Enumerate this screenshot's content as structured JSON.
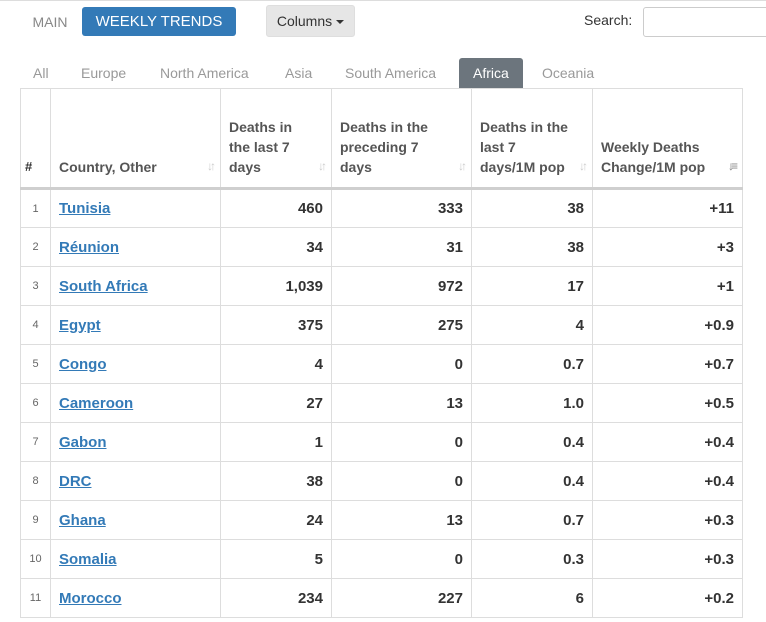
{
  "topbar": {
    "main_tab": "MAIN",
    "weekly_tab": "WEEKLY TRENDS",
    "columns_label": "Columns",
    "search_label": "Search:",
    "search_value": ""
  },
  "regions": [
    {
      "label": "All",
      "active": false
    },
    {
      "label": "Europe",
      "active": false
    },
    {
      "label": "North America",
      "active": false
    },
    {
      "label": "Asia",
      "active": false
    },
    {
      "label": "South America",
      "active": false
    },
    {
      "label": "Africa",
      "active": true
    },
    {
      "label": "Oceania",
      "active": false
    }
  ],
  "table": {
    "headers": {
      "idx": "#",
      "country": "Country, Other",
      "deaths_last7": "Deaths in the last 7 days",
      "deaths_prev7": "Deaths in the preceding 7 days",
      "deaths_per_m": "Deaths in the last 7 days/1M pop",
      "weekly_change": "Weekly Deaths Change/1M pop"
    },
    "rows": [
      {
        "idx": "1",
        "country": "Tunisia",
        "last7": "460",
        "prev7": "333",
        "per_m": "38",
        "change": "+11"
      },
      {
        "idx": "2",
        "country": "Réunion",
        "last7": "34",
        "prev7": "31",
        "per_m": "38",
        "change": "+3"
      },
      {
        "idx": "3",
        "country": "South Africa",
        "last7": "1,039",
        "prev7": "972",
        "per_m": "17",
        "change": "+1"
      },
      {
        "idx": "4",
        "country": "Egypt",
        "last7": "375",
        "prev7": "275",
        "per_m": "4",
        "change": "+0.9"
      },
      {
        "idx": "5",
        "country": "Congo",
        "last7": "4",
        "prev7": "0",
        "per_m": "0.7",
        "change": "+0.7"
      },
      {
        "idx": "6",
        "country": "Cameroon",
        "last7": "27",
        "prev7": "13",
        "per_m": "1.0",
        "change": "+0.5"
      },
      {
        "idx": "7",
        "country": "Gabon",
        "last7": "1",
        "prev7": "0",
        "per_m": "0.4",
        "change": "+0.4"
      },
      {
        "idx": "8",
        "country": "DRC",
        "last7": "38",
        "prev7": "0",
        "per_m": "0.4",
        "change": "+0.4"
      },
      {
        "idx": "9",
        "country": "Ghana",
        "last7": "24",
        "prev7": "13",
        "per_m": "0.7",
        "change": "+0.3"
      },
      {
        "idx": "10",
        "country": "Somalia",
        "last7": "5",
        "prev7": "0",
        "per_m": "0.3",
        "change": "+0.3"
      },
      {
        "idx": "11",
        "country": "Morocco",
        "last7": "234",
        "prev7": "227",
        "per_m": "6",
        "change": "+0.2"
      }
    ]
  }
}
